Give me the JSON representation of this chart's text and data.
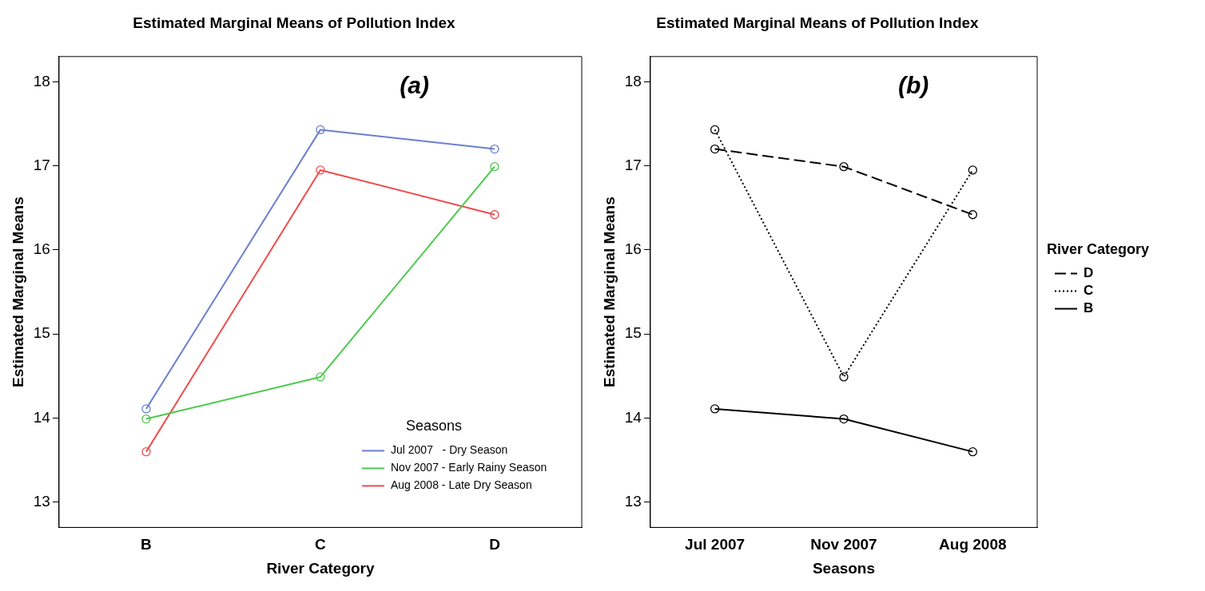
{
  "chart_data": [
    {
      "type": "line",
      "title": "Estimated Marginal Means of Pollution Index",
      "xlabel": "River Category",
      "ylabel": "Estimated Marginal Means",
      "categories": [
        "B",
        "C",
        "D"
      ],
      "ylim": [
        12.7,
        18.3
      ],
      "yticks": [
        13,
        14,
        15,
        16,
        17,
        18
      ],
      "grid": false,
      "marker": "circle",
      "legend": "bottom right",
      "legend_title": "Seasons",
      "annotations": [
        "(a)"
      ],
      "series": [
        {
          "name": "Jul 2007   - Dry Season",
          "color": "#6a7fd1",
          "line_style": "solid",
          "values": [
            14.11,
            17.43,
            17.2
          ]
        },
        {
          "name": "Nov 2007 - Early Rainy Season",
          "color": "#4cc94c",
          "line_style": "solid",
          "values": [
            13.99,
            14.49,
            16.99
          ]
        },
        {
          "name": "Aug 2008 - Late Dry Season",
          "color": "#f04c4c",
          "line_style": "solid",
          "values": [
            13.6,
            16.95,
            16.42
          ]
        }
      ]
    },
    {
      "type": "line",
      "title": "Estimated Marginal Means of Pollution Index",
      "xlabel": "Seasons",
      "ylabel": "Estimated Marginal Means",
      "categories": [
        "Jul 2007",
        "Nov 2007",
        "Aug 2008"
      ],
      "ylim": [
        12.7,
        18.3
      ],
      "yticks": [
        13,
        14,
        15,
        16,
        17,
        18
      ],
      "grid": false,
      "marker": "circle",
      "legend": "right",
      "legend_title": "River Category",
      "annotations": [
        "(b)"
      ],
      "series": [
        {
          "name": "D",
          "color": "#000000",
          "line_style": "dashed",
          "values": [
            17.2,
            16.99,
            16.42
          ]
        },
        {
          "name": "C",
          "color": "#000000",
          "line_style": "dotted",
          "values": [
            17.43,
            14.49,
            16.95
          ]
        },
        {
          "name": "B",
          "color": "#000000",
          "line_style": "solid",
          "values": [
            14.11,
            13.99,
            13.6
          ]
        }
      ]
    }
  ]
}
